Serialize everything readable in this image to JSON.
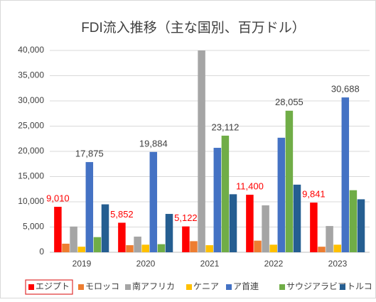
{
  "chart_data": {
    "type": "bar",
    "title": "FDI流入推移（主な国別、百万ドル）",
    "categories": [
      "2019",
      "2020",
      "2021",
      "2022",
      "2023"
    ],
    "series": [
      {
        "name": "エジプト",
        "color": "#ff0000",
        "value_label_color": "#ff0000",
        "values": [
          9010,
          5852,
          5122,
          11400,
          9841
        ],
        "value_labels": [
          "9,010",
          "5,852",
          "5,122",
          "11,400",
          "9,841"
        ]
      },
      {
        "name": "モロッコ",
        "color": "#ed7d31",
        "values": [
          1700,
          1400,
          2200,
          2300,
          1100
        ]
      },
      {
        "name": "南アフリカ",
        "color": "#a5a5a5",
        "values": [
          5100,
          3100,
          40000,
          9300,
          5200
        ]
      },
      {
        "name": "ケニア",
        "color": "#ffc000",
        "values": [
          1100,
          1500,
          1400,
          1500,
          1500
        ]
      },
      {
        "name": "ア首連",
        "color": "#4472c4",
        "value_label_color": "#404040",
        "values": [
          17875,
          19884,
          20700,
          22700,
          30688
        ],
        "value_labels": [
          "17,875",
          "19,884",
          null,
          null,
          "30,688"
        ]
      },
      {
        "name": "サウジアラビア",
        "color": "#70ad47",
        "value_label_color": "#404040",
        "values": [
          3000,
          1600,
          23112,
          28055,
          12300
        ],
        "value_labels": [
          null,
          null,
          "23,112",
          "28,055",
          null
        ]
      },
      {
        "name": "トルコ",
        "color": "#255e91",
        "values": [
          9500,
          7600,
          11500,
          13400,
          10500
        ]
      }
    ],
    "ylim": [
      0,
      40000
    ],
    "yticks": [
      0,
      {
        "value": 5000,
        "label": "5,000"
      },
      {
        "value": 10000,
        "label": "10,000"
      },
      {
        "value": 15000,
        "label": "15,000"
      },
      {
        "value": 20000,
        "label": "20,000"
      },
      {
        "value": 25000,
        "label": "25,000"
      },
      {
        "value": 30000,
        "label": "30,000"
      },
      {
        "value": 35000,
        "label": "35,000"
      },
      {
        "value": 40000,
        "label": "40,000"
      }
    ],
    "grid": true,
    "legend": "bottom"
  }
}
